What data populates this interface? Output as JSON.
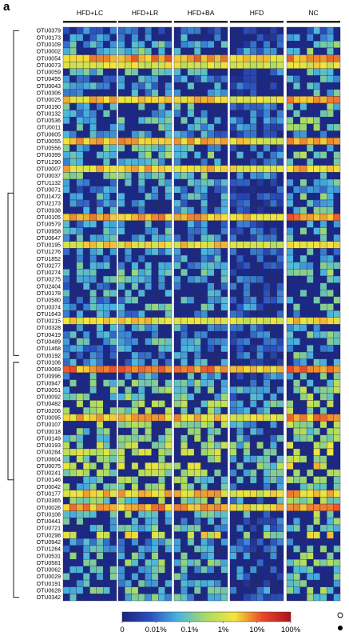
{
  "figure": {
    "panel_letter": "a"
  },
  "chart_data": {
    "type": "heatmap",
    "groups": [
      "HFD+LC",
      "HFD+LR",
      "HFD+BA",
      "HFD",
      "NC"
    ],
    "samples_per_group": [
      8,
      8,
      8,
      8,
      8
    ],
    "rows": [
      "OTU0379",
      "OTU0173",
      "OTU0109",
      "OTU0002",
      "OTU0054",
      "OTU0073",
      "OTU0059",
      "OTU0455",
      "OTU0043",
      "OTU0306",
      "OTU0025",
      "OTU0190",
      "OTU0132",
      "OTU0536",
      "OTU0011",
      "OTU0605",
      "OTU0055",
      "OTU0556",
      "OTU0399",
      "OTU1290",
      "OTU0007",
      "OTU0037",
      "OTU1132",
      "OTU0071",
      "OTU1472",
      "OTU2173",
      "OTU0938",
      "OTU0105",
      "OTU0579",
      "OTU0958",
      "OTU0647",
      "OTU0195",
      "OTU1276",
      "OTU1852",
      "OTU0277",
      "OTU0274",
      "OTU0275",
      "OTU2404",
      "OTU0178",
      "OTU0580",
      "OTU0374",
      "OTU1643",
      "OTU0215",
      "OTU0328",
      "OTU0419",
      "OTU0489",
      "OTU1468",
      "OTU0192",
      "OTU0106",
      "OTU0069",
      "OTU0996",
      "OTU0947",
      "OTU0051",
      "OTU0092",
      "OTU0482",
      "OTU0206",
      "OTU0095",
      "OTU0107",
      "OTU0018",
      "OTU0149",
      "OTU0193",
      "OTU0284",
      "OTU0604",
      "OTU0075",
      "OTU0241",
      "OTU0146",
      "OTU0042",
      "OTU0177",
      "OTU0365",
      "OTU0026",
      "OTU0108",
      "OTU0441",
      "OTU0721",
      "OTU0298",
      "OTU0942",
      "OTU1264",
      "OTU0531",
      "OTU0581",
      "OTU0062",
      "OTU0029",
      "OTU0191",
      "OTU0628",
      "OTU0342"
    ],
    "clusters": [
      {
        "first_row": 0,
        "last_row": 47
      },
      {
        "first_row": 48,
        "last_row": 82
      }
    ],
    "colorbar": {
      "tick_labels": [
        "0",
        "0.01%",
        "0.1%",
        "1%",
        "10%",
        "100%"
      ],
      "colors": [
        "#1a237e",
        "#2b4fc0",
        "#4ab6e0",
        "#a9dc62",
        "#f5e53a",
        "#e8492a",
        "#b0101c"
      ]
    },
    "legend_markers": [
      "open-circle",
      "filled-circle"
    ],
    "value_scale": "0 = no abundance, 1 = 0.01%, 2 = 0.1%, 3 = 1%, 4 = 10%, 5 = 100%",
    "row_levels": [
      0.5,
      0.9,
      1.1,
      1.4,
      3.7,
      3.0,
      1.3,
      0.8,
      0.9,
      1.0,
      3.4,
      1.2,
      1.1,
      1.4,
      1.2,
      0.9,
      3.5,
      1.3,
      1.6,
      1.2,
      3.4,
      1.5,
      1.0,
      0.8,
      1.2,
      0.9,
      1.0,
      3.6,
      0.9,
      1.1,
      1.1,
      3.3,
      0.8,
      0.9,
      1.1,
      1.3,
      1.2,
      0.9,
      1.1,
      1.0,
      1.3,
      0.9,
      3.2,
      1.0,
      1.1,
      1.2,
      0.9,
      1.0,
      0.9,
      3.8,
      1.2,
      1.4,
      1.6,
      1.5,
      1.9,
      1.7,
      3.5,
      1.8,
      1.4,
      1.6,
      2.0,
      2.2,
      1.8,
      2.4,
      1.9,
      1.7,
      1.6,
      3.4,
      1.5,
      3.6,
      1.6,
      1.2,
      1.3,
      2.6,
      1.0,
      1.1,
      1.4,
      1.5,
      1.2,
      1.3,
      1.0,
      1.4,
      1.2
    ],
    "group_offsets": [
      0.0,
      0.1,
      0.0,
      -0.6,
      0.3
    ]
  }
}
